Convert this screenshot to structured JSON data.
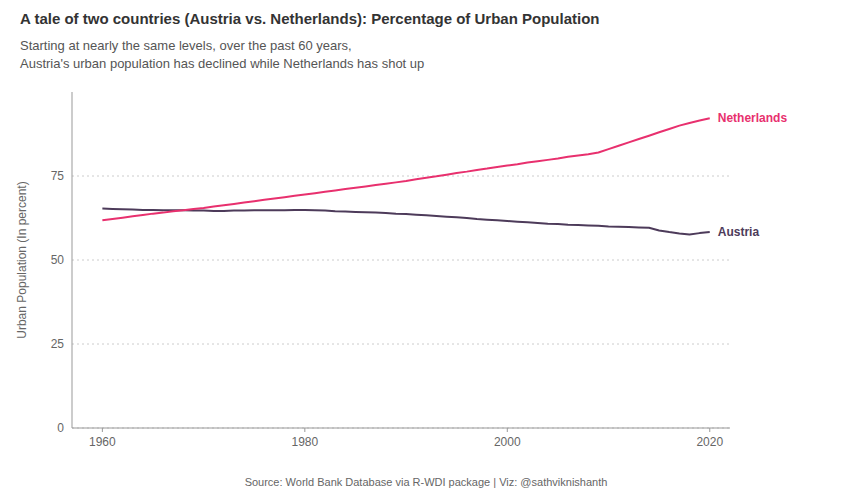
{
  "chart_data": {
    "type": "line",
    "title": "A tale of two countries (Austria vs. Netherlands): Percentage of Urban Population",
    "subtitle": [
      "Starting at nearly the same levels, over the past 60 years,",
      "Austria's urban population has declined while Netherlands has shot up"
    ],
    "y_label": "Urban Population (In percent)",
    "annotations": [
      "Source: World Bank Database via R-WDI package | Viz: @sathviknishanth"
    ],
    "x": [
      1960,
      1961,
      1962,
      1963,
      1964,
      1965,
      1966,
      1967,
      1968,
      1969,
      1970,
      1971,
      1972,
      1973,
      1974,
      1975,
      1976,
      1977,
      1978,
      1979,
      1980,
      1981,
      1982,
      1983,
      1984,
      1985,
      1986,
      1987,
      1988,
      1989,
      1990,
      1991,
      1992,
      1993,
      1994,
      1995,
      1996,
      1997,
      1998,
      1999,
      2000,
      2001,
      2002,
      2003,
      2004,
      2005,
      2006,
      2007,
      2008,
      2009,
      2010,
      2011,
      2012,
      2013,
      2014,
      2015,
      2016,
      2017,
      2018,
      2019,
      2020
    ],
    "series": [
      {
        "name": "Austria",
        "color": "#4d3b5a",
        "values": [
          65.3,
          65.2,
          65.1,
          65.0,
          64.9,
          64.9,
          64.8,
          64.8,
          64.8,
          64.7,
          64.7,
          64.6,
          64.6,
          64.7,
          64.7,
          64.8,
          64.8,
          64.8,
          64.8,
          64.9,
          64.9,
          64.8,
          64.7,
          64.5,
          64.4,
          64.3,
          64.2,
          64.1,
          64.0,
          63.8,
          63.7,
          63.5,
          63.3,
          63.1,
          62.9,
          62.7,
          62.5,
          62.2,
          62.0,
          61.8,
          61.6,
          61.4,
          61.2,
          61.0,
          60.8,
          60.7,
          60.5,
          60.4,
          60.3,
          60.2,
          60.0,
          59.9,
          59.8,
          59.7,
          59.6,
          58.8,
          58.3,
          57.9,
          57.6,
          58.0,
          58.3
        ]
      },
      {
        "name": "Netherlands",
        "color": "#e8306e",
        "values": [
          61.8,
          62.2,
          62.6,
          63.0,
          63.4,
          63.8,
          64.1,
          64.5,
          64.8,
          65.2,
          65.5,
          65.9,
          66.3,
          66.7,
          67.1,
          67.5,
          67.9,
          68.3,
          68.7,
          69.1,
          69.5,
          69.9,
          70.3,
          70.7,
          71.1,
          71.5,
          71.9,
          72.3,
          72.7,
          73.1,
          73.5,
          74.0,
          74.5,
          74.9,
          75.4,
          75.9,
          76.3,
          76.8,
          77.2,
          77.7,
          78.1,
          78.5,
          79.0,
          79.4,
          79.8,
          80.2,
          80.7,
          81.1,
          81.5,
          82.0,
          83.0,
          84.0,
          85.0,
          86.0,
          87.0,
          88.0,
          89.0,
          90.0,
          90.8,
          91.5,
          92.2
        ]
      }
    ],
    "xlim": [
      1957,
      2022
    ],
    "ylim": [
      0,
      100
    ],
    "xticks": [
      1960,
      1980,
      2000,
      2020
    ],
    "yticks": [
      0,
      25,
      50,
      75
    ],
    "grid": true
  }
}
